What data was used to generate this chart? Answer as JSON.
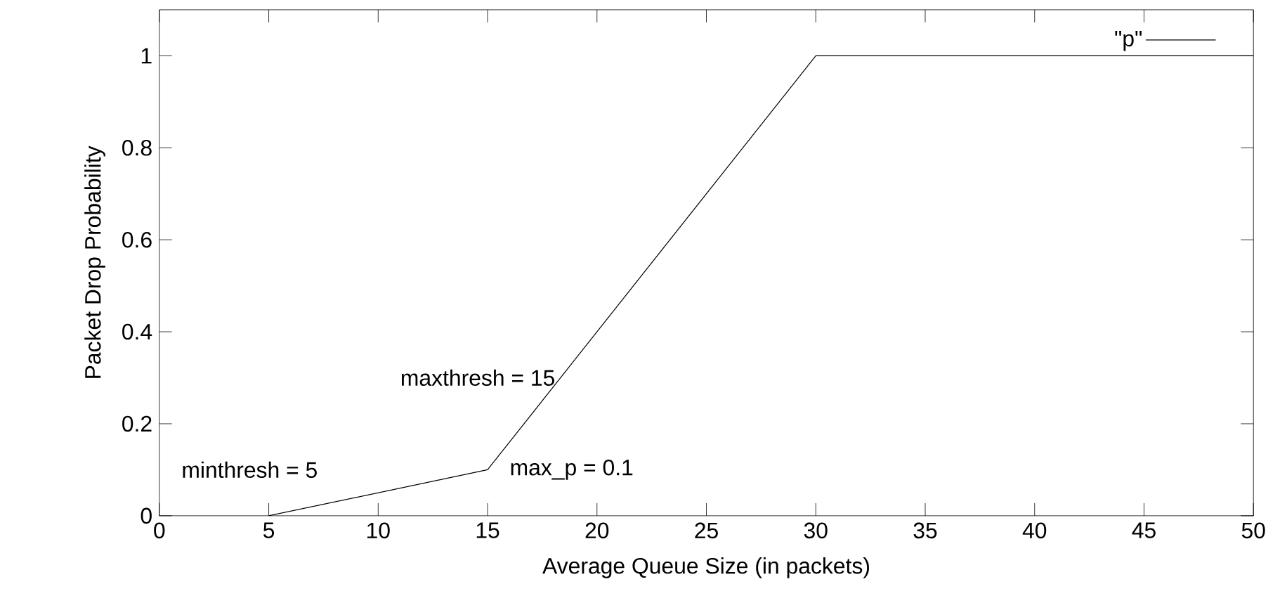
{
  "chart_data": {
    "type": "line",
    "xlabel": "Average Queue Size (in packets)",
    "ylabel": "Packet Drop Probability",
    "x": [
      5,
      15,
      30,
      50
    ],
    "series": [
      {
        "name": "\"p\"",
        "color": "#000000",
        "values": [
          0,
          0.1,
          1,
          1
        ]
      }
    ],
    "xlim": [
      0,
      50
    ],
    "ylim": [
      0,
      1.1
    ],
    "xticks": [
      0,
      5,
      10,
      15,
      20,
      25,
      30,
      35,
      40,
      45,
      50
    ],
    "yticks": [
      0,
      0.2,
      0.4,
      0.6,
      0.8,
      1
    ],
    "legend": "top right",
    "grid": false,
    "marker": "none",
    "line_style": "solid",
    "annotations": [
      "minthresh = 5",
      "maxthresh = 15",
      "max_p = 0.1"
    ]
  }
}
